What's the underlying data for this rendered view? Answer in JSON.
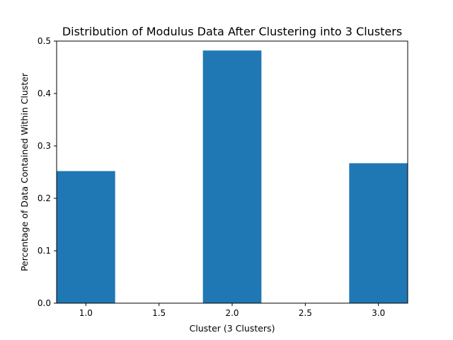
{
  "chart_data": {
    "type": "bar",
    "title": "Distribution of Modulus Data After Clustering into 3 Clusters",
    "xlabel": "Cluster (3 Clusters)",
    "ylabel": "Percentage of Data Contained Within Cluster",
    "x": [
      1.0,
      2.0,
      3.0
    ],
    "values": [
      0.252,
      0.482,
      0.267
    ],
    "bar_width": 0.4,
    "xlim": [
      0.8,
      3.2
    ],
    "ylim": [
      0,
      0.5
    ],
    "xticks": [
      "1.0",
      "1.5",
      "2.0",
      "2.5",
      "3.0"
    ],
    "yticks": [
      "0.0",
      "0.1",
      "0.2",
      "0.3",
      "0.4",
      "0.5"
    ],
    "bar_color": "#1f77b4",
    "grid": false,
    "legend": false
  }
}
